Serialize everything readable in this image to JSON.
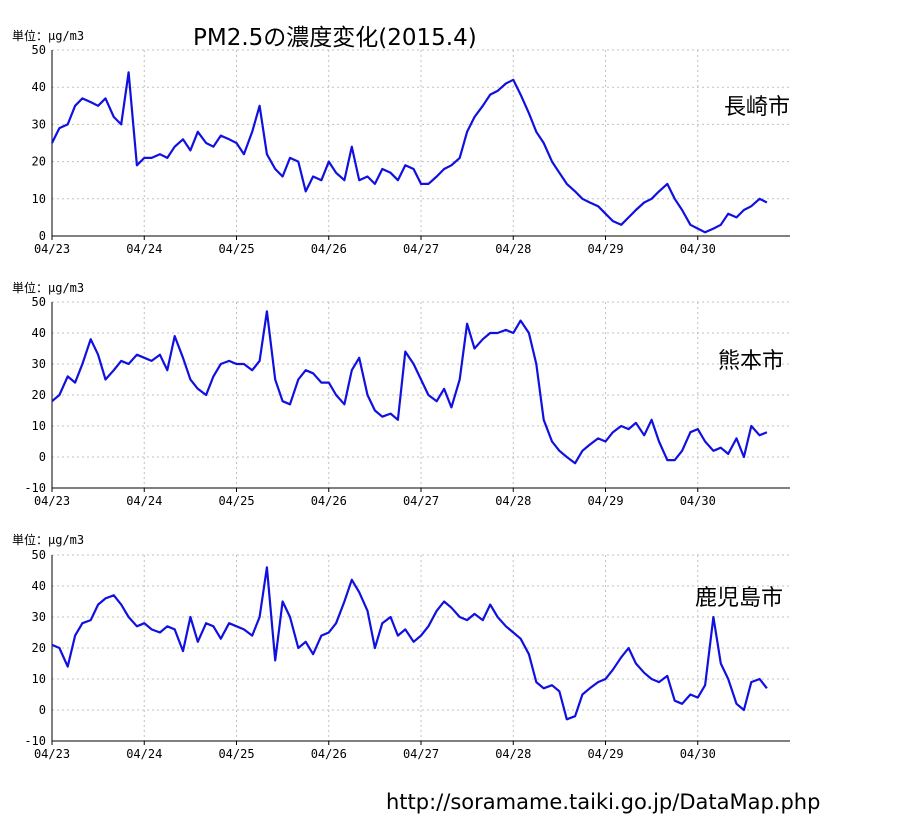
{
  "title": "PM2.5の濃度変化(2015.4)",
  "source": "http://soramame.taiki.go.jp/DataMap.php",
  "colors": {
    "line": "#1010e0",
    "grid": "#c0c0c0",
    "axis": "#000000"
  },
  "chart_data": [
    {
      "type": "line",
      "title": "長崎市",
      "unit_label": "単位：μg/m3",
      "x_tick_labels": [
        "04/23",
        "04/24",
        "04/25",
        "04/26",
        "04/27",
        "04/28",
        "04/29",
        "04/30"
      ],
      "ylim": [
        0,
        50
      ],
      "y_ticks": [
        0,
        10,
        20,
        30,
        40,
        50
      ],
      "grid": true,
      "series": [
        {
          "x_days": [
            0,
            0.08,
            0.17,
            0.25,
            0.33,
            0.42,
            0.5,
            0.58,
            0.67,
            0.75,
            0.83,
            0.92,
            1.0,
            1.08,
            1.17,
            1.25,
            1.33,
            1.42,
            1.5,
            1.58,
            1.67,
            1.75,
            1.83,
            1.92,
            2.0,
            2.08,
            2.17,
            2.25,
            2.33,
            2.42,
            2.5,
            2.58,
            2.67,
            2.75,
            2.83,
            2.92,
            3.0,
            3.08,
            3.17,
            3.25,
            3.33,
            3.42,
            3.5,
            3.58,
            3.67,
            3.75,
            3.83,
            3.92,
            4.0,
            4.08,
            4.17,
            4.25,
            4.33,
            4.42,
            4.5,
            4.58,
            4.67,
            4.75,
            4.83,
            4.92,
            5.0,
            5.08,
            5.17,
            5.25,
            5.33,
            5.42,
            5.5,
            5.58,
            5.67,
            5.75,
            5.83,
            5.92,
            6.0,
            6.08,
            6.17,
            6.25,
            6.33,
            6.42,
            6.5,
            6.58,
            6.67,
            6.75,
            6.83,
            6.92,
            7.0,
            7.08,
            7.17,
            7.25,
            7.33,
            7.42,
            7.5,
            7.58,
            7.67,
            7.75
          ],
          "values": [
            25,
            29,
            30,
            35,
            37,
            36,
            35,
            37,
            32,
            30,
            44,
            19,
            21,
            21,
            22,
            21,
            24,
            26,
            23,
            28,
            25,
            24,
            27,
            26,
            25,
            22,
            28,
            35,
            22,
            18,
            16,
            21,
            20,
            12,
            16,
            15,
            20,
            17,
            15,
            24,
            15,
            16,
            14,
            18,
            17,
            15,
            19,
            18,
            14,
            14,
            16,
            18,
            19,
            21,
            28,
            32,
            35,
            38,
            39,
            41,
            42,
            38,
            33,
            28,
            25,
            20,
            17,
            14,
            12,
            10,
            9,
            8,
            6,
            4,
            3,
            5,
            7,
            9,
            10,
            12,
            14,
            10,
            7,
            3,
            2,
            1,
            2,
            3,
            6,
            5,
            7,
            8,
            10,
            9
          ]
        }
      ]
    },
    {
      "type": "line",
      "title": "熊本市",
      "unit_label": "単位：μg/m3",
      "x_tick_labels": [
        "04/23",
        "04/24",
        "04/25",
        "04/26",
        "04/27",
        "04/28",
        "04/29",
        "04/30"
      ],
      "ylim": [
        -10,
        50
      ],
      "y_ticks": [
        -10,
        0,
        10,
        20,
        30,
        40,
        50
      ],
      "grid": true,
      "series": [
        {
          "x_days": [
            0,
            0.08,
            0.17,
            0.25,
            0.33,
            0.42,
            0.5,
            0.58,
            0.67,
            0.75,
            0.83,
            0.92,
            1.0,
            1.08,
            1.17,
            1.25,
            1.33,
            1.42,
            1.5,
            1.58,
            1.67,
            1.75,
            1.83,
            1.92,
            2.0,
            2.08,
            2.17,
            2.25,
            2.33,
            2.42,
            2.5,
            2.58,
            2.67,
            2.75,
            2.83,
            2.92,
            3.0,
            3.08,
            3.17,
            3.25,
            3.33,
            3.42,
            3.5,
            3.58,
            3.67,
            3.75,
            3.83,
            3.92,
            4.0,
            4.08,
            4.17,
            4.25,
            4.33,
            4.42,
            4.5,
            4.58,
            4.67,
            4.75,
            4.83,
            4.92,
            5.0,
            5.08,
            5.17,
            5.25,
            5.33,
            5.42,
            5.5,
            5.58,
            5.67,
            5.75,
            5.83,
            5.92,
            6.0,
            6.08,
            6.17,
            6.25,
            6.33,
            6.42,
            6.5,
            6.58,
            6.67,
            6.75,
            6.83,
            6.92,
            7.0,
            7.08,
            7.17,
            7.25,
            7.33,
            7.42,
            7.5,
            7.58,
            7.67,
            7.75
          ],
          "values": [
            18,
            20,
            26,
            24,
            30,
            38,
            33,
            25,
            28,
            31,
            30,
            33,
            32,
            31,
            33,
            28,
            39,
            32,
            25,
            22,
            20,
            26,
            30,
            31,
            30,
            30,
            28,
            31,
            47,
            25,
            18,
            17,
            25,
            28,
            27,
            24,
            24,
            20,
            17,
            28,
            32,
            20,
            15,
            13,
            14,
            12,
            34,
            30,
            25,
            20,
            18,
            22,
            16,
            25,
            43,
            35,
            38,
            40,
            40,
            41,
            40,
            44,
            40,
            30,
            12,
            5,
            2,
            0,
            -2,
            2,
            4,
            6,
            5,
            8,
            10,
            9,
            11,
            7,
            12,
            5,
            -1,
            -1,
            2,
            8,
            9,
            5,
            2,
            3,
            1,
            6,
            0,
            10,
            7,
            8
          ]
        }
      ]
    },
    {
      "type": "line",
      "title": "鹿児島市",
      "unit_label": "単位：μg/m3",
      "x_tick_labels": [
        "04/23",
        "04/24",
        "04/25",
        "04/26",
        "04/27",
        "04/28",
        "04/29",
        "04/30"
      ],
      "ylim": [
        -10,
        50
      ],
      "y_ticks": [
        -10,
        0,
        10,
        20,
        30,
        40,
        50
      ],
      "grid": true,
      "series": [
        {
          "x_days": [
            0,
            0.08,
            0.17,
            0.25,
            0.33,
            0.42,
            0.5,
            0.58,
            0.67,
            0.75,
            0.83,
            0.92,
            1.0,
            1.08,
            1.17,
            1.25,
            1.33,
            1.42,
            1.5,
            1.58,
            1.67,
            1.75,
            1.83,
            1.92,
            2.0,
            2.08,
            2.17,
            2.25,
            2.33,
            2.42,
            2.5,
            2.58,
            2.67,
            2.75,
            2.83,
            2.92,
            3.0,
            3.08,
            3.17,
            3.25,
            3.33,
            3.42,
            3.5,
            3.58,
            3.67,
            3.75,
            3.83,
            3.92,
            4.0,
            4.08,
            4.17,
            4.25,
            4.33,
            4.42,
            4.5,
            4.58,
            4.67,
            4.75,
            4.83,
            4.92,
            5.0,
            5.08,
            5.17,
            5.25,
            5.33,
            5.42,
            5.5,
            5.58,
            5.67,
            5.75,
            5.83,
            5.92,
            6.0,
            6.08,
            6.17,
            6.25,
            6.33,
            6.42,
            6.5,
            6.58,
            6.67,
            6.75,
            6.83,
            6.92,
            7.0,
            7.08,
            7.17,
            7.25,
            7.33,
            7.42,
            7.5,
            7.58,
            7.67,
            7.75
          ],
          "values": [
            21,
            20,
            14,
            24,
            28,
            29,
            34,
            36,
            37,
            34,
            30,
            27,
            28,
            26,
            25,
            27,
            26,
            19,
            30,
            22,
            28,
            27,
            23,
            28,
            27,
            26,
            24,
            30,
            46,
            16,
            35,
            30,
            20,
            22,
            18,
            24,
            25,
            28,
            35,
            42,
            38,
            32,
            20,
            28,
            30,
            24,
            26,
            22,
            24,
            27,
            32,
            35,
            33,
            30,
            29,
            31,
            29,
            34,
            30,
            27,
            25,
            23,
            18,
            9,
            7,
            8,
            6,
            -3,
            -2,
            5,
            7,
            9,
            10,
            13,
            17,
            20,
            15,
            12,
            10,
            9,
            11,
            3,
            2,
            5,
            4,
            8,
            30,
            15,
            10,
            2,
            0,
            9,
            10,
            7
          ]
        }
      ]
    }
  ]
}
